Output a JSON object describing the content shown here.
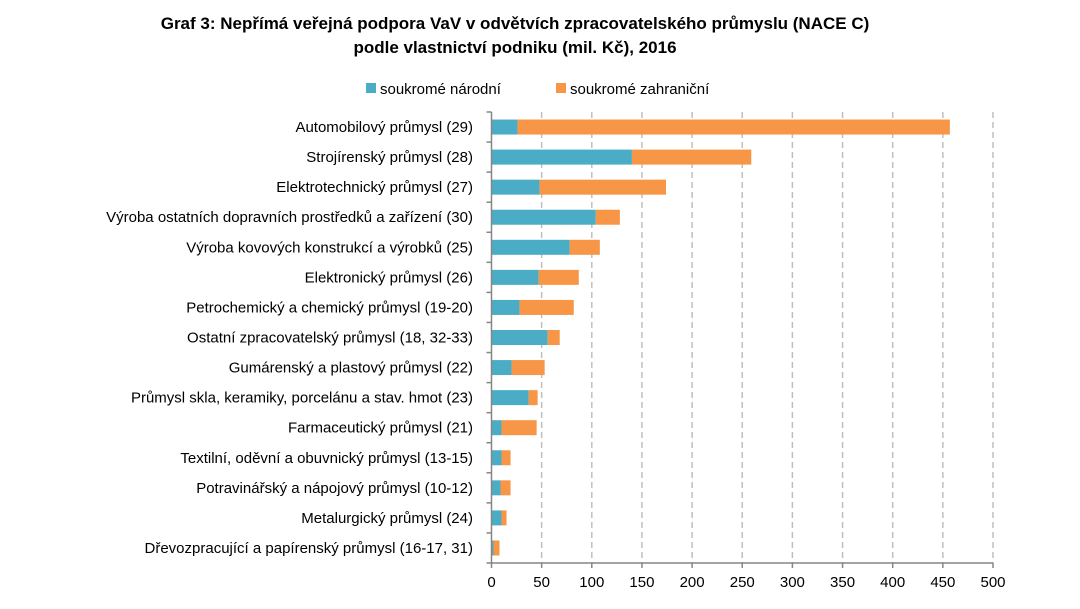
{
  "chart_data": {
    "type": "bar",
    "orientation": "horizontal",
    "stacked": true,
    "title": "Graf 3: Nepřímá veřejná podpora VaV v odvětvích zpracovatelského průmyslu (NACE C)",
    "subtitle": "podle vlastnictví podniku (mil. Kč), 2016",
    "xlabel": "",
    "ylabel": "",
    "xlim": [
      0,
      500
    ],
    "xticks": [
      0,
      50,
      100,
      150,
      200,
      250,
      300,
      350,
      400,
      450,
      500
    ],
    "grid": "vertical dashed",
    "legend_position": "top",
    "categories": [
      "Automobilový průmysl (29)",
      "Strojírenský průmysl (28)",
      "Elektrotechnický průmysl (27)",
      "Výroba ostatních dopravních prostředků a zařízení (30)",
      "Výroba kovových konstrukcí a výrobků (25)",
      "Elektronický průmysl (26)",
      "Petrochemický a chemický průmysl (19-20)",
      "Ostatní zpracovatelský průmysl (18, 32-33)",
      "Gumárenský a plastový průmysl (22)",
      "Průmysl skla, keramiky, porcelánu a stav. hmot (23)",
      "Farmaceutický průmysl (21)",
      "Textilní, oděvní a obuvnický průmysl (13-15)",
      "Potravinářský a nápojový průmysl (10-12)",
      "Metalurgický průmysl (24)",
      "Dřevozpracující a papírenský průmysl (16-17, 31)"
    ],
    "series": [
      {
        "name": "soukromé národní",
        "color": "#4bacc6",
        "values": [
          26,
          140,
          48,
          104,
          78,
          47,
          28,
          56,
          20,
          37,
          10,
          10,
          9,
          10,
          2
        ]
      },
      {
        "name": "soukromé zahraniční",
        "color": "#f79646",
        "values": [
          431,
          119,
          126,
          24,
          30,
          40,
          54,
          12,
          33,
          9,
          35,
          9,
          10,
          5,
          6
        ]
      }
    ]
  }
}
